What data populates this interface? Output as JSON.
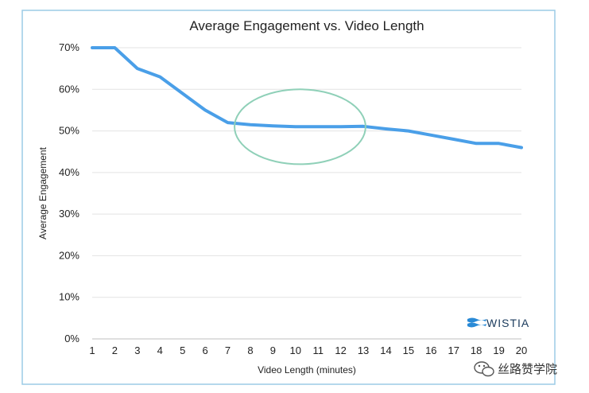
{
  "chart_data": {
    "type": "line",
    "title": "Average Engagement vs. Video Length",
    "xlabel": "Video Length (minutes)",
    "ylabel": "Average Engagement",
    "x": [
      1,
      2,
      3,
      4,
      5,
      6,
      7,
      8,
      9,
      10,
      11,
      12,
      13,
      14,
      15,
      16,
      17,
      18,
      19,
      20
    ],
    "series": [
      {
        "values": [
          70,
          70,
          65,
          63,
          59,
          55,
          52,
          51.5,
          51.2,
          51,
          51,
          51,
          51.1,
          50.5,
          50,
          49,
          48,
          47,
          47,
          46
        ]
      }
    ],
    "y_ticks": [
      "0%",
      "10%",
      "20%",
      "30%",
      "40%",
      "50%",
      "60%",
      "70%"
    ],
    "x_ticks": [
      "1",
      "2",
      "3",
      "4",
      "5",
      "6",
      "7",
      "8",
      "9",
      "10",
      "11",
      "12",
      "13",
      "14",
      "15",
      "16",
      "17",
      "18",
      "19",
      "20"
    ],
    "ylim": [
      0,
      70
    ],
    "xlim": [
      1,
      20
    ],
    "grid": true,
    "line_color": "#4a9fe8",
    "highlight": {
      "shape": "ellipse",
      "x_center": 10.2,
      "y_center": 51,
      "x_halfwidth": 2.9,
      "y_halfheight": 9,
      "color": "#8fd0b8"
    }
  },
  "brand": {
    "logo_text": "WISTIA",
    "logo_color": "#2a8ad6"
  },
  "watermark": {
    "text": "丝路赞学院"
  },
  "frame_color": "#9ccbe6"
}
